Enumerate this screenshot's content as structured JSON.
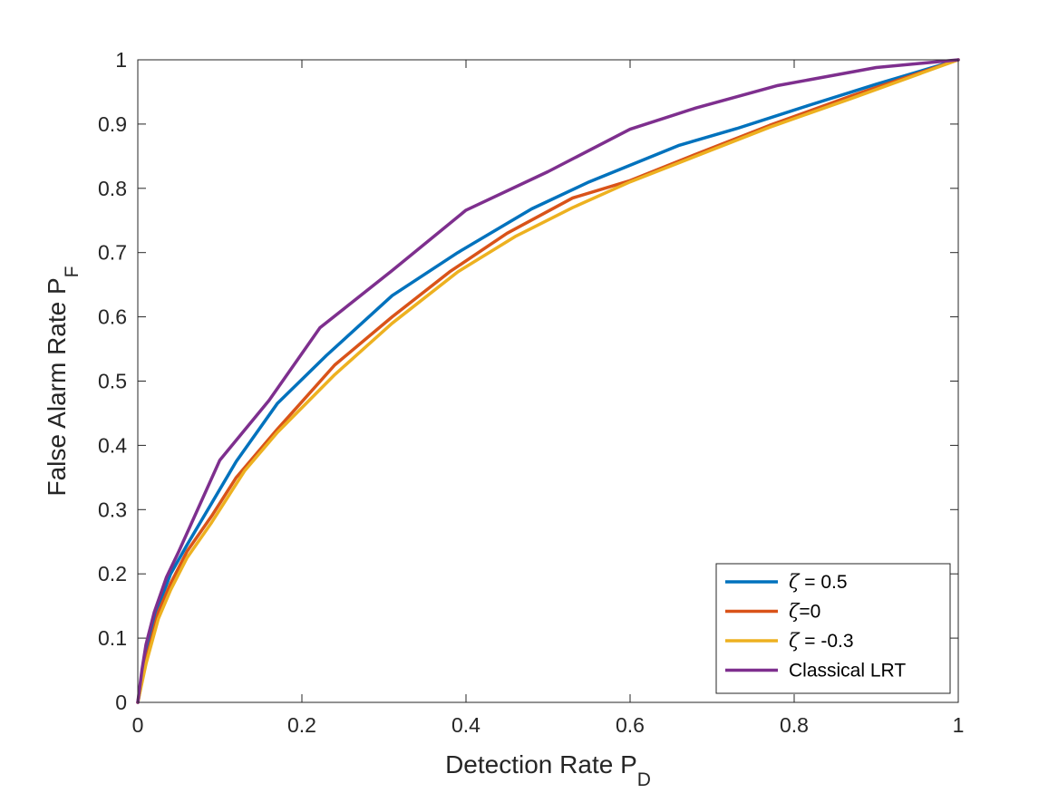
{
  "chart_data": {
    "type": "line",
    "title": "",
    "xlabel": "Detection Rate P",
    "xlabel_sub": "D",
    "ylabel": "False Alarm Rate P",
    "ylabel_sub": "F",
    "xlim": [
      0,
      1
    ],
    "ylim": [
      0,
      1
    ],
    "grid": false,
    "legend_position": "bottom-right",
    "x_ticks": [
      0,
      0.2,
      0.4,
      0.6,
      0.8,
      1
    ],
    "y_ticks": [
      0,
      0.1,
      0.2,
      0.3,
      0.4,
      0.5,
      0.6,
      0.7,
      0.8,
      0.9,
      1
    ],
    "x_tick_labels": [
      "0",
      "0.2",
      "0.4",
      "0.6",
      "0.8",
      "1"
    ],
    "y_tick_labels": [
      "0",
      "0.1",
      "0.2",
      "0.3",
      "0.4",
      "0.5",
      "0.6",
      "0.7",
      "0.8",
      "0.9",
      "1"
    ],
    "series": [
      {
        "name": "ζ = 0.5",
        "legend_symbol": "ζ",
        "legend_rest": " = 0.5",
        "color": "#0072BD",
        "x": [
          0,
          0.01,
          0.025,
          0.04,
          0.06,
          0.09,
          0.12,
          0.17,
          0.23,
          0.31,
          0.39,
          0.48,
          0.55,
          0.66,
          0.73,
          0.82,
          0.9,
          1
        ],
        "y": [
          0,
          0.07,
          0.15,
          0.2,
          0.245,
          0.31,
          0.375,
          0.465,
          0.54,
          0.633,
          0.7,
          0.768,
          0.81,
          0.867,
          0.893,
          0.93,
          0.962,
          1
        ]
      },
      {
        "name": "ζ=0",
        "legend_symbol": "ζ",
        "legend_rest": "=0",
        "color": "#D95319",
        "x": [
          0,
          0.01,
          0.025,
          0.04,
          0.06,
          0.09,
          0.12,
          0.17,
          0.24,
          0.31,
          0.38,
          0.45,
          0.53,
          0.6,
          0.68,
          0.77,
          0.87,
          1
        ],
        "y": [
          0,
          0.065,
          0.14,
          0.185,
          0.235,
          0.29,
          0.35,
          0.425,
          0.525,
          0.6,
          0.67,
          0.73,
          0.785,
          0.812,
          0.853,
          0.898,
          0.944,
          1
        ]
      },
      {
        "name": "ζ = -0.3",
        "legend_symbol": "ζ",
        "legend_rest": " = -0.3",
        "color": "#EDB120",
        "x": [
          0,
          0.01,
          0.025,
          0.04,
          0.06,
          0.09,
          0.13,
          0.17,
          0.24,
          0.31,
          0.39,
          0.46,
          0.53,
          0.6,
          0.68,
          0.77,
          0.87,
          1
        ],
        "y": [
          0,
          0.06,
          0.13,
          0.175,
          0.225,
          0.28,
          0.36,
          0.42,
          0.51,
          0.59,
          0.67,
          0.725,
          0.77,
          0.81,
          0.85,
          0.895,
          0.94,
          1
        ]
      },
      {
        "name": "Classical LRT",
        "legend_symbol": "",
        "legend_rest": "Classical LRT",
        "color": "#7E2F8E",
        "x": [
          0,
          0.005,
          0.01,
          0.02,
          0.035,
          0.05,
          0.1,
          0.16,
          0.222,
          0.31,
          0.4,
          0.5,
          0.6,
          0.68,
          0.78,
          0.9,
          1
        ],
        "y": [
          0,
          0.05,
          0.09,
          0.14,
          0.195,
          0.235,
          0.377,
          0.47,
          0.583,
          0.672,
          0.766,
          0.826,
          0.892,
          0.925,
          0.96,
          0.988,
          1
        ]
      }
    ]
  }
}
